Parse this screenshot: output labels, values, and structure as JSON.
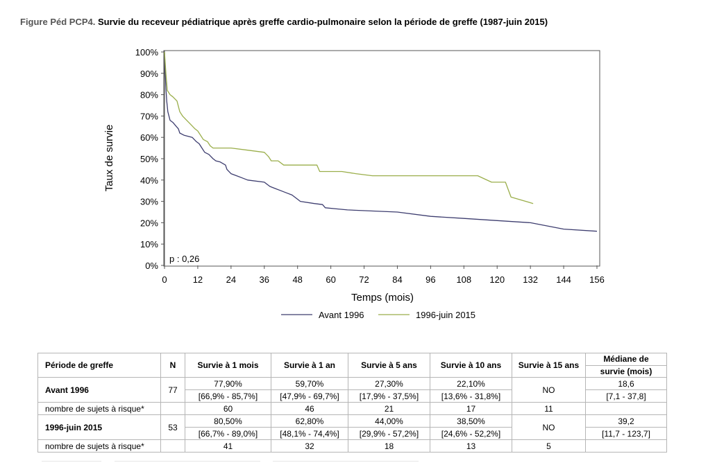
{
  "title": {
    "prefix": "Figure Péd PCP4.",
    "text": "Survie du receveur pédiatrique après greffe cardio-pulmonaire selon la période de greffe (1987-juin 2015)"
  },
  "chart_data": {
    "type": "line",
    "xlabel": "Temps (mois)",
    "ylabel": "Taux de survie",
    "xlim": [
      0,
      156
    ],
    "ylim": [
      0,
      100
    ],
    "xticks": [
      "0",
      "12",
      "24",
      "36",
      "48",
      "60",
      "72",
      "84",
      "96",
      "108",
      "120",
      "132",
      "144",
      "156"
    ],
    "yticks": [
      "0%",
      "10%",
      "20%",
      "30%",
      "40%",
      "50%",
      "60%",
      "70%",
      "80%",
      "90%",
      "100%"
    ],
    "annotation": "p : 0,26",
    "legend_position": "bottom",
    "series": [
      {
        "name": "Avant 1996",
        "color": "#3c3c6e",
        "points": [
          [
            0,
            100
          ],
          [
            0.3,
            90
          ],
          [
            0.5,
            83
          ],
          [
            0.8,
            77
          ],
          [
            1.2,
            72
          ],
          [
            2,
            68
          ],
          [
            3,
            67
          ],
          [
            4,
            65.5
          ],
          [
            5,
            64
          ],
          [
            5.5,
            62
          ],
          [
            7,
            61
          ],
          [
            10,
            60
          ],
          [
            11.5,
            58
          ],
          [
            12.5,
            57
          ],
          [
            13.5,
            55
          ],
          [
            14.5,
            53
          ],
          [
            16,
            52
          ],
          [
            17.5,
            50
          ],
          [
            18.5,
            49
          ],
          [
            20,
            48.5
          ],
          [
            22,
            47
          ],
          [
            22.5,
            45
          ],
          [
            24,
            43
          ],
          [
            26,
            42
          ],
          [
            28,
            41
          ],
          [
            30,
            40
          ],
          [
            36,
            39
          ],
          [
            38,
            37
          ],
          [
            40,
            36
          ],
          [
            42,
            35
          ],
          [
            44,
            34
          ],
          [
            46,
            33
          ],
          [
            48,
            31
          ],
          [
            49,
            30
          ],
          [
            54,
            29
          ],
          [
            57,
            28.5
          ],
          [
            58,
            27
          ],
          [
            62,
            26.5
          ],
          [
            66,
            26
          ],
          [
            84,
            25
          ],
          [
            96,
            23
          ],
          [
            108,
            22
          ],
          [
            120,
            21
          ],
          [
            132,
            20
          ],
          [
            144,
            17
          ],
          [
            156,
            16
          ]
        ]
      },
      {
        "name": "1996-juin 2015",
        "color": "#9aae4a",
        "points": [
          [
            0,
            100
          ],
          [
            0.5,
            90
          ],
          [
            1,
            82
          ],
          [
            2,
            80
          ],
          [
            3,
            79
          ],
          [
            4.5,
            77
          ],
          [
            5.5,
            72
          ],
          [
            6.5,
            70
          ],
          [
            8,
            68
          ],
          [
            9.5,
            66
          ],
          [
            11,
            64
          ],
          [
            12,
            63
          ],
          [
            13,
            61
          ],
          [
            14,
            59
          ],
          [
            15.5,
            58
          ],
          [
            16.5,
            56
          ],
          [
            17.5,
            55
          ],
          [
            24,
            55
          ],
          [
            30,
            54
          ],
          [
            36,
            53
          ],
          [
            37.5,
            51
          ],
          [
            38.5,
            49
          ],
          [
            41,
            49
          ],
          [
            43,
            47
          ],
          [
            55,
            47
          ],
          [
            56,
            44
          ],
          [
            64,
            44
          ],
          [
            69,
            43
          ],
          [
            75,
            42
          ],
          [
            113,
            42
          ],
          [
            118,
            39
          ],
          [
            123,
            39
          ],
          [
            125,
            32
          ],
          [
            133,
            29
          ]
        ]
      }
    ]
  },
  "table": {
    "headers": [
      "Période de greffe",
      "N",
      "Survie à 1 mois",
      "Survie à 1 an",
      "Survie à 5 ans",
      "Survie à 10 ans",
      "Survie à 15 ans"
    ],
    "median_header": [
      "Médiane de",
      "survie (mois)"
    ],
    "groups": [
      {
        "name": "Avant 1996",
        "n": "77",
        "values": [
          "77,90%",
          "59,70%",
          "27,30%",
          "22,10%"
        ],
        "ci": [
          "[66,9% - 85,7%]",
          "[47,9% - 69,7%]",
          "[17,9% - 37,5%]",
          "[13,6% - 31,8%]"
        ],
        "y15": "NO",
        "median": "18,6",
        "median_ci": "[7,1 - 37,8]",
        "risk_label": "nombre de sujets à risque*",
        "risk": [
          "60",
          "46",
          "21",
          "17",
          "11"
        ]
      },
      {
        "name": "1996-juin 2015",
        "n": "53",
        "values": [
          "80,50%",
          "62,80%",
          "44,00%",
          "38,50%"
        ],
        "ci": [
          "[66,7% - 89,0%]",
          "[48,1% - 74,4%]",
          "[29,9% - 57,2%]",
          "[24,6% - 52,2%]"
        ],
        "y15": "NO",
        "median": "39,2",
        "median_ci": "[11,7 - 123,7]",
        "risk_label": "nombre de sujets à risque*",
        "risk": [
          "41",
          "32",
          "18",
          "13",
          "5"
        ]
      }
    ]
  }
}
